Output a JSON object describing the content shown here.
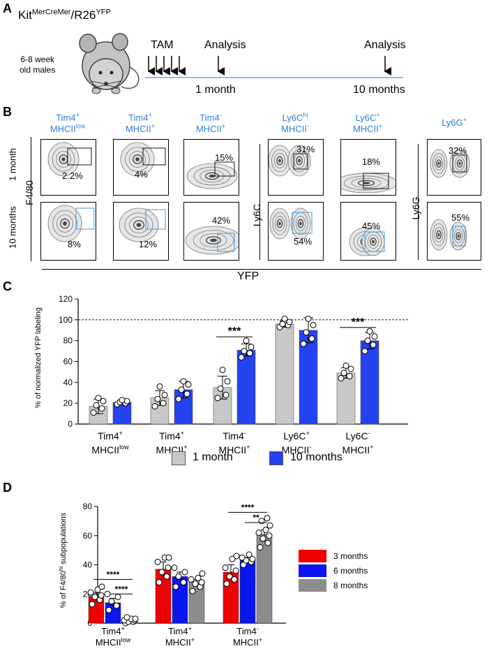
{
  "panelA": {
    "label": "A",
    "mouse_title": {
      "base1": "Kit",
      "sup1": "MerCreMer",
      "base2": "/R26",
      "sup2": "YFP"
    },
    "mouse_desc": [
      "6-8 week",
      "old males"
    ],
    "tam": "TAM",
    "analysis1": "Analysis",
    "analysis2": "Analysis",
    "t1": "1 month",
    "t2": "10 months"
  },
  "panelB": {
    "label": "B",
    "gates": [
      {
        "l1": "Tim4",
        "s1": "+",
        "l2": "MHCII",
        "s2": "low",
        "pct_1m": "2.2%",
        "pct_10m": "8%"
      },
      {
        "l1": "Tim4",
        "s1": "+",
        "l2": "MHCII",
        "s2": "+",
        "pct_1m": "4%",
        "pct_10m": "12%"
      },
      {
        "l1": "Tim4",
        "s1": "-",
        "l2": "MHCII",
        "s2": "+",
        "pct_1m": "15%",
        "pct_10m": "42%"
      },
      {
        "l1": "Ly6C",
        "s1": "hi",
        "l2": "MHCII",
        "s2": "-",
        "pct_1m": "31%",
        "pct_10m": "54%"
      },
      {
        "l1": "Ly6C",
        "s1": "+",
        "l2": "MHCII",
        "s2": "+",
        "pct_1m": "18%",
        "pct_10m": "45%"
      },
      {
        "l1": "Ly6G",
        "s1": "+",
        "l2": "",
        "s2": "",
        "pct_1m": "32%",
        "pct_10m": "55%"
      }
    ],
    "row1": "1 month",
    "row2": "10 months",
    "yl_f480": "F4/80",
    "yl_ly6c": "Ly6C",
    "yl_ly6g": "Ly6G",
    "xl": "YFP"
  },
  "panelC": {
    "label": "C",
    "colors": {
      "one_month": "#c8c8c8",
      "ten_months": "#2442f0"
    },
    "legend": [
      "1 month",
      "10 months"
    ],
    "sig": [
      "***",
      "***"
    ],
    "chart_data": {
      "type": "bar",
      "ylabel": "% of normalized YFP labeling",
      "ylim": [
        0,
        120
      ],
      "yticks": [
        0,
        20,
        40,
        60,
        80,
        100,
        120
      ],
      "reference_line": 100,
      "categories": [
        {
          "l1": "Tim4",
          "s1": "+",
          "l2": "MHCII",
          "s2": "low"
        },
        {
          "l1": "Tim4",
          "s1": "+",
          "l2": "MHCII",
          "s2": "+"
        },
        {
          "l1": "Tim4",
          "s1": "-",
          "l2": "MHCII",
          "s2": "+"
        },
        {
          "l1": "Ly6C",
          "s1": "+",
          "l2": "MHCII",
          "s2": "-"
        },
        {
          "l1": "Ly6C",
          "s1": "-",
          "l2": "MHCII",
          "s2": "+"
        }
      ],
      "series": [
        {
          "name": "1 month",
          "values": [
            17,
            25,
            35,
            96,
            49
          ],
          "errors": [
            7,
            7,
            11,
            3,
            5
          ],
          "points": [
            [
              11,
              15,
              18,
              22,
              25
            ],
            [
              17,
              20,
              24,
              28,
              36
            ],
            [
              25,
              28,
              34,
              41,
              52
            ],
            [
              93,
              95,
              96,
              98,
              101
            ],
            [
              44,
              46,
              49,
              53,
              56
            ]
          ]
        },
        {
          "name": "10 months",
          "values": [
            21,
            33,
            71,
            90,
            80
          ],
          "errors": [
            2,
            8,
            6,
            12,
            8
          ],
          "points": [
            [
              19,
              20,
              21,
              22,
              23
            ],
            [
              24,
              29,
              33,
              38,
              41
            ],
            [
              64,
              68,
              70,
              74,
              80
            ],
            [
              77,
              82,
              88,
              95,
              101
            ],
            [
              70,
              76,
              80,
              84,
              89
            ]
          ]
        }
      ]
    }
  },
  "panelD": {
    "label": "D",
    "colors": {
      "m3": "#f00000",
      "m6": "#0a16ee",
      "m8": "#8c8c8c"
    },
    "legend": [
      "3 months",
      "6 months",
      "8 months"
    ],
    "sig": [
      "****",
      "****",
      "****",
      "**"
    ],
    "chart_data": {
      "type": "bar",
      "ylabel": "% of F4/80hi subpopulations",
      "ylabel_parts": {
        "pre": "% of F4/80",
        "sup": "hi",
        "post": " subpopulations"
      },
      "ylim": [
        0,
        80
      ],
      "yticks": [
        0,
        20,
        40,
        60,
        80
      ],
      "categories": [
        {
          "l1": "Tim4",
          "s1": "+",
          "l2": "MHCII",
          "s2": "low"
        },
        {
          "l1": "Tim4",
          "s1": "+",
          "l2": "MHCII",
          "s2": "+"
        },
        {
          "l1": "Tim4",
          "s1": "-",
          "l2": "MHCII",
          "s2": "+"
        }
      ],
      "series": [
        {
          "name": "3 months",
          "values": [
            18,
            37,
            35
          ],
          "errors": [
            3,
            5,
            5
          ],
          "points": [
            [
              13,
              16,
              18,
              19,
              21,
              23,
              25
            ],
            [
              28,
              32,
              35,
              38,
              42,
              45,
              45
            ],
            [
              27,
              30,
              32,
              36,
              38,
              44,
              46
            ]
          ]
        },
        {
          "name": "6 months",
          "values": [
            14,
            32,
            43
          ],
          "errors": [
            3,
            3,
            2
          ],
          "points": [
            [
              9,
              12,
              15,
              18,
              20
            ],
            [
              25,
              28,
              32,
              35,
              38
            ],
            [
              40,
              42,
              43,
              44,
              45,
              47
            ]
          ]
        },
        {
          "name": "8 months",
          "values": [
            2,
            28,
            61
          ],
          "errors": [
            1,
            2,
            3
          ],
          "points": [
            [
              0,
              1,
              1,
              2,
              2,
              3,
              3,
              4
            ],
            [
              22,
              25,
              27,
              28,
              30,
              31,
              34
            ],
            [
              52,
              55,
              58,
              60,
              62,
              64,
              67,
              70,
              72
            ]
          ]
        }
      ]
    }
  }
}
